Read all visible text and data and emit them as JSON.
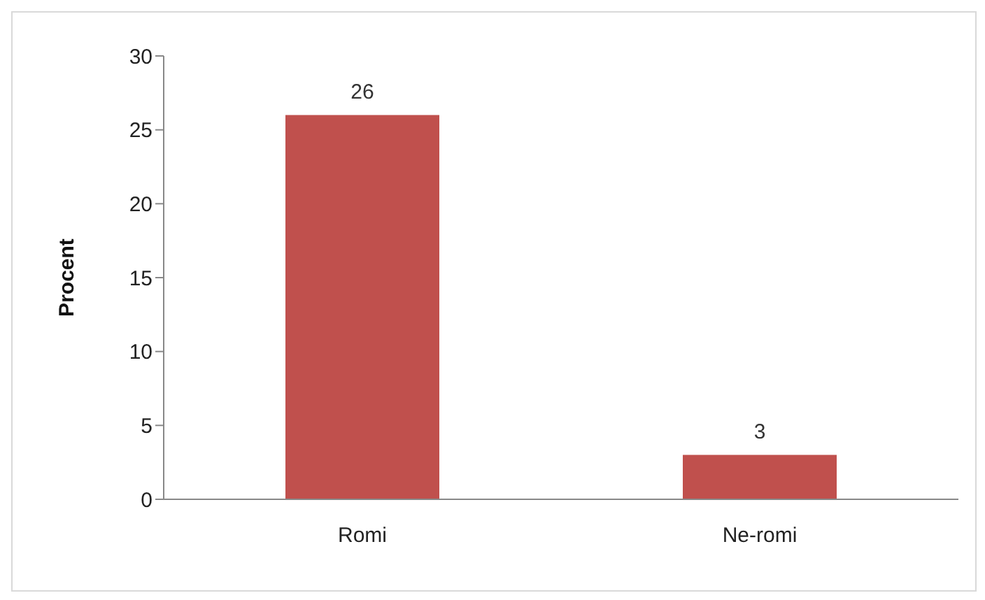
{
  "chart_data": {
    "type": "bar",
    "ylabel": "Procent",
    "categories": [
      "Romi",
      "Ne-romi"
    ],
    "values": [
      26,
      3
    ],
    "color": "#c0504d",
    "ylim": [
      0,
      30
    ],
    "yticks": [
      0,
      5,
      10,
      15,
      20,
      25,
      30
    ],
    "grid": false,
    "data_labels": true
  }
}
